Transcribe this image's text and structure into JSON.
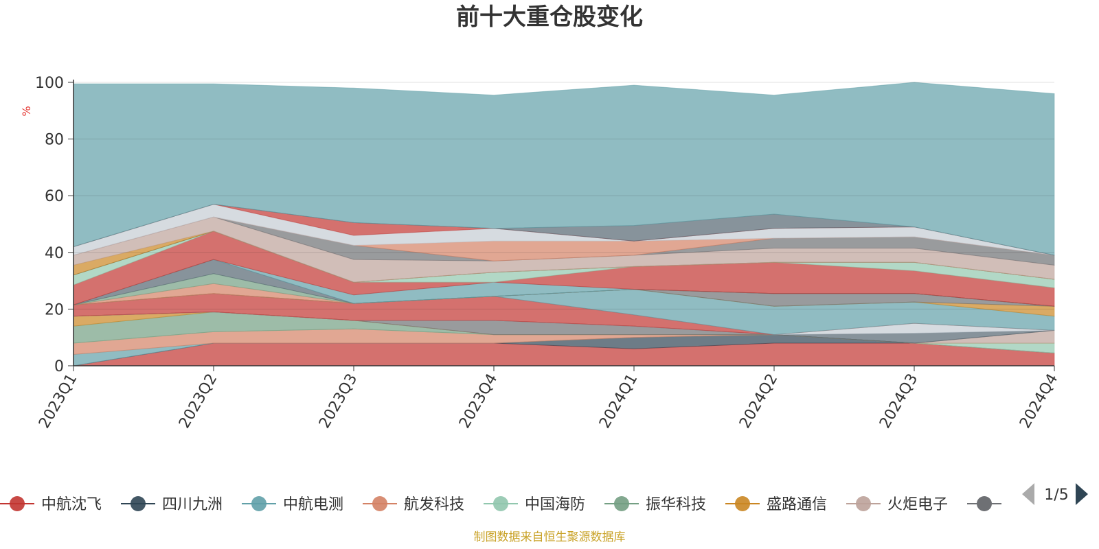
{
  "title": "前十大重仓股变化",
  "footer": "制图数据来自恒生聚源数据库",
  "legend_page": "1/5",
  "colors": {
    "accent_unit": "#e53935",
    "footer": "#c9a227",
    "page_arrow_prev": "#aaaaaa",
    "page_arrow_next": "#2f4554"
  },
  "chart_data": {
    "type": "area",
    "stacked": true,
    "unit_label": "%",
    "categories": [
      "2023Q1",
      "2023Q2",
      "2023Q3",
      "2023Q4",
      "2024Q1",
      "2024Q2",
      "2024Q3",
      "2024Q4"
    ],
    "ylim": [
      0,
      100
    ],
    "yticks": [
      0,
      20,
      40,
      60,
      80,
      100
    ],
    "grid": true,
    "legend_position": "bottom",
    "series": [
      {
        "name": "中航沈飞",
        "color": "#c23531",
        "values": [
          0,
          8,
          8,
          8,
          6,
          8,
          8,
          4.5
        ]
      },
      {
        "name": "四川九洲",
        "color": "#2f4554",
        "values": [
          0,
          0,
          0,
          0,
          4,
          3,
          0,
          0
        ]
      },
      {
        "name": "中航电测",
        "color": "#61a0a8",
        "values": [
          4,
          0,
          0,
          0,
          0,
          0,
          0,
          0
        ]
      },
      {
        "name": "航发科技",
        "color": "#d48265",
        "values": [
          4,
          4,
          5,
          3,
          1,
          0,
          0,
          0
        ]
      },
      {
        "name": "中国海防",
        "color": "#91c7ae",
        "values": [
          0,
          0,
          0,
          0,
          0,
          0,
          0,
          3.5
        ]
      },
      {
        "name": "振华科技",
        "color": "#749f83",
        "values": [
          6,
          7,
          3,
          0,
          0,
          0,
          0,
          0
        ]
      },
      {
        "name": "盛路通信",
        "color": "#ca8622",
        "values": [
          3.5,
          0,
          0,
          0,
          0,
          0,
          0,
          0
        ]
      },
      {
        "name": "火炬电子",
        "color": "#bda29a",
        "values": [
          0,
          0,
          0,
          0,
          0,
          0,
          0,
          4.5
        ]
      },
      {
        "name": "",
        "color": "#6e7074",
        "values": [
          0,
          0,
          0,
          5,
          3,
          0,
          0,
          0
        ]
      },
      {
        "name": "",
        "color": "#546570",
        "values": [
          0,
          0,
          0,
          0,
          0,
          0,
          3.5,
          0
        ]
      },
      {
        "name": "",
        "color": "#c4ccd3",
        "values": [
          0,
          0,
          0,
          0,
          0,
          0,
          3.5,
          0
        ]
      },
      {
        "name": "",
        "color": "#c23531",
        "values": [
          4,
          6.5,
          6,
          8.5,
          4,
          0,
          0,
          0
        ]
      },
      {
        "name": "",
        "color": "#61a0a8",
        "values": [
          0,
          0,
          0,
          0,
          9,
          10,
          7.5,
          5
        ]
      },
      {
        "name": "",
        "color": "#ca8622",
        "values": [
          0,
          0,
          0,
          0,
          0,
          0,
          0,
          3.5
        ]
      },
      {
        "name": "",
        "color": "#6e7074",
        "values": [
          0,
          0,
          0,
          0,
          0,
          4.5,
          3,
          0
        ]
      },
      {
        "name": "",
        "color": "#d48265",
        "values": [
          0,
          3.5,
          0,
          0,
          0,
          0,
          0,
          0
        ]
      },
      {
        "name": "",
        "color": "#749f83",
        "values": [
          0,
          3.5,
          0,
          0,
          0,
          0,
          0,
          0
        ]
      },
      {
        "name": "",
        "color": "#546570",
        "values": [
          0,
          5,
          0,
          0,
          0,
          0,
          0,
          0
        ]
      },
      {
        "name": "",
        "color": "#61a0a8",
        "values": [
          0,
          0,
          3,
          5,
          0,
          0,
          0,
          0
        ]
      },
      {
        "name": "",
        "color": "#c23531",
        "values": [
          7,
          10,
          4.5,
          0,
          8,
          11,
          8,
          6.5
        ]
      },
      {
        "name": "",
        "color": "#91c7ae",
        "values": [
          3.5,
          0,
          0,
          3.5,
          0,
          0,
          3,
          3
        ]
      },
      {
        "name": "",
        "color": "#2f4554",
        "values": [
          0,
          0,
          0,
          0,
          0,
          0,
          0,
          0
        ]
      },
      {
        "name": "",
        "color": "#ca8622",
        "values": [
          3.5,
          0,
          0,
          0,
          0,
          0,
          0,
          0
        ]
      },
      {
        "name": "",
        "color": "#bda29a",
        "values": [
          3.5,
          5,
          8,
          4,
          4,
          5,
          5,
          5
        ]
      },
      {
        "name": "",
        "color": "#6e7074",
        "values": [
          0,
          0,
          5,
          0,
          0,
          3.5,
          4,
          3.5
        ]
      },
      {
        "name": "",
        "color": "#d48265",
        "values": [
          0,
          0,
          0,
          7,
          5,
          0,
          0,
          0
        ]
      },
      {
        "name": "",
        "color": "#c4ccd3",
        "values": [
          3,
          4.5,
          3.5,
          4.5,
          0,
          3.5,
          3.5,
          0
        ]
      },
      {
        "name": "",
        "color": "#c23531",
        "values": [
          0,
          0,
          4.5,
          0,
          0,
          0,
          0,
          0
        ]
      },
      {
        "name": "",
        "color": "#546570",
        "values": [
          0,
          0,
          0,
          0,
          5.5,
          5,
          0,
          0
        ]
      },
      {
        "name": "",
        "color": "#61a0a8",
        "values": [
          57.5,
          42.5,
          47.5,
          47,
          49.5,
          42,
          51,
          57
        ]
      }
    ]
  }
}
